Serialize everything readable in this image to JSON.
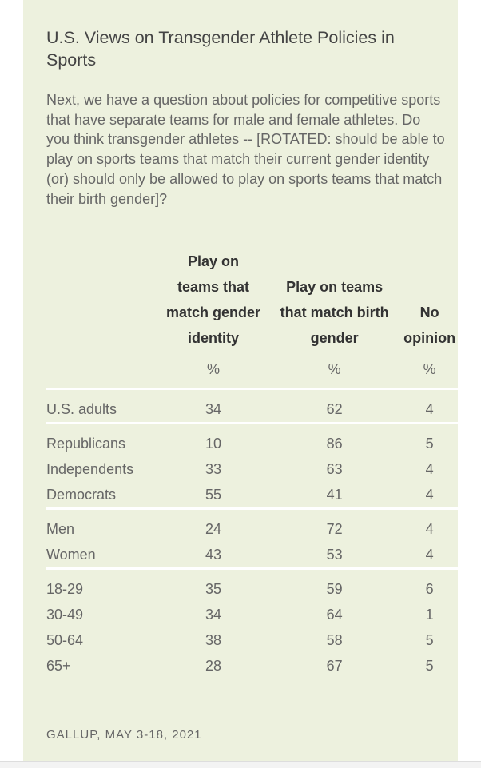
{
  "title": "U.S. Views on Transgender Athlete Policies in Sports",
  "question": "Next, we have a question about policies for competitive sports that have separate teams for male and female athletes. Do you think transgender athletes -- [ROTATED: should be able to play on sports teams that match their current gender identity (or) should only be allowed to play on sports teams that match their birth gender]?",
  "footer": "GALLUP, MAY 3-18, 2021",
  "chart_data": {
    "type": "table",
    "columns": [
      "Play on teams that match gender identity",
      "Play on teams that match birth gender",
      "No opinion"
    ],
    "unit": "%",
    "groups": [
      [
        {
          "label": "U.S. adults",
          "values": [
            "34",
            "62",
            "4"
          ]
        }
      ],
      [
        {
          "label": "Republicans",
          "values": [
            "10",
            "86",
            "5"
          ]
        },
        {
          "label": "Independents",
          "values": [
            "33",
            "63",
            "4"
          ]
        },
        {
          "label": "Democrats",
          "values": [
            "55",
            "41",
            "4"
          ]
        }
      ],
      [
        {
          "label": "Men",
          "values": [
            "24",
            "72",
            "4"
          ]
        },
        {
          "label": "Women",
          "values": [
            "43",
            "53",
            "4"
          ]
        }
      ],
      [
        {
          "label": "18-29",
          "values": [
            "35",
            "59",
            "6"
          ]
        },
        {
          "label": "30-49",
          "values": [
            "34",
            "64",
            "1"
          ]
        },
        {
          "label": "50-64",
          "values": [
            "38",
            "58",
            "5"
          ]
        },
        {
          "label": "65+",
          "values": [
            "28",
            "67",
            "5"
          ]
        }
      ]
    ]
  }
}
